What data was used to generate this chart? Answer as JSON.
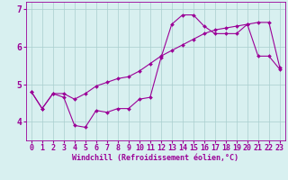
{
  "xlabel": "Windchill (Refroidissement éolien,°C)",
  "x_values": [
    0,
    1,
    2,
    3,
    4,
    5,
    6,
    7,
    8,
    9,
    10,
    11,
    12,
    13,
    14,
    15,
    16,
    17,
    18,
    19,
    20,
    21,
    22,
    23
  ],
  "line1_y": [
    4.8,
    4.35,
    4.75,
    4.65,
    3.9,
    3.85,
    4.3,
    4.25,
    4.35,
    4.35,
    4.6,
    4.65,
    5.7,
    6.6,
    6.85,
    6.85,
    6.55,
    6.35,
    6.35,
    6.35,
    6.6,
    5.75,
    5.75,
    5.4
  ],
  "line2_y": [
    4.8,
    4.35,
    4.75,
    4.75,
    4.6,
    4.75,
    4.95,
    5.05,
    5.15,
    5.2,
    5.35,
    5.55,
    5.75,
    5.9,
    6.05,
    6.2,
    6.35,
    6.45,
    6.5,
    6.55,
    6.6,
    6.65,
    6.65,
    5.45
  ],
  "line_color": "#9b0097",
  "bg_color": "#d8f0f0",
  "grid_color": "#aacece",
  "ylim": [
    3.5,
    7.2
  ],
  "xlim": [
    -0.5,
    23.5
  ],
  "yticks": [
    4,
    5,
    6,
    7
  ],
  "xticks": [
    0,
    1,
    2,
    3,
    4,
    5,
    6,
    7,
    8,
    9,
    10,
    11,
    12,
    13,
    14,
    15,
    16,
    17,
    18,
    19,
    20,
    21,
    22,
    23
  ],
  "marker_size": 2.0,
  "linewidth": 0.8,
  "tick_fontsize": 6,
  "xlabel_fontsize": 6
}
